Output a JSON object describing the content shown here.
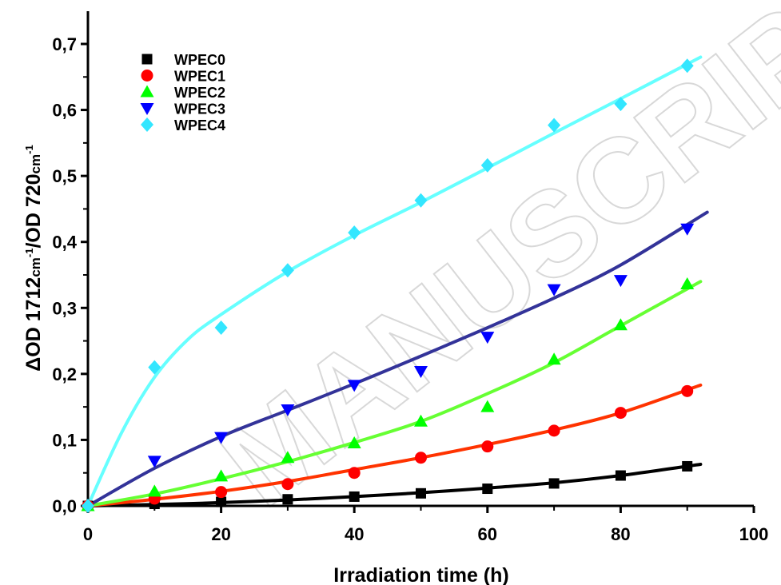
{
  "watermark": "MANUSCRIPT",
  "chart_data": {
    "type": "scatter",
    "title": "",
    "xlabel": "Irradiation time (h)",
    "ylabel_parts": [
      "ΔOD 1712",
      "cm",
      "-1",
      "/OD 720",
      "cm",
      "-1"
    ],
    "xlim": [
      0,
      100
    ],
    "ylim": [
      0,
      0.7
    ],
    "xticks": [
      0,
      20,
      40,
      60,
      80,
      100
    ],
    "xtick_labels": [
      "0",
      "20",
      "40",
      "60",
      "80",
      "100"
    ],
    "yticks": [
      0,
      0.1,
      0.2,
      0.3,
      0.4,
      0.5,
      0.6,
      0.7
    ],
    "ytick_labels": [
      "0,0",
      "0,1",
      "0,2",
      "0,3",
      "0,4",
      "0,5",
      "0,6",
      "0,7"
    ],
    "grid": false,
    "legend_position": "top-left",
    "series": [
      {
        "name": "WPEC0",
        "marker": "square",
        "marker_color": "#000000",
        "line_color": "#000000",
        "x": [
          0,
          10,
          20,
          30,
          40,
          50,
          60,
          70,
          80,
          90
        ],
        "y": [
          0.0,
          0.003,
          0.006,
          0.01,
          0.014,
          0.019,
          0.026,
          0.034,
          0.046,
          0.06
        ],
        "fit_x": [
          0,
          10,
          20,
          30,
          40,
          50,
          60,
          70,
          80,
          92
        ],
        "fit_y": [
          0.0,
          0.002,
          0.005,
          0.009,
          0.014,
          0.02,
          0.027,
          0.035,
          0.046,
          0.063
        ]
      },
      {
        "name": "WPEC1",
        "marker": "circle",
        "marker_color": "#ff0000",
        "line_color": "#ff3300",
        "x": [
          0,
          10,
          20,
          30,
          40,
          50,
          60,
          70,
          80,
          90
        ],
        "y": [
          0.0,
          0.011,
          0.021,
          0.033,
          0.05,
          0.073,
          0.09,
          0.114,
          0.141,
          0.174
        ],
        "fit_x": [
          0,
          10,
          20,
          30,
          40,
          50,
          60,
          70,
          80,
          92
        ],
        "fit_y": [
          0.0,
          0.01,
          0.022,
          0.037,
          0.055,
          0.073,
          0.093,
          0.115,
          0.141,
          0.183
        ]
      },
      {
        "name": "WPEC2",
        "marker": "triangle-up",
        "marker_color": "#00ff00",
        "line_color": "#66ff33",
        "x": [
          0,
          10,
          20,
          30,
          40,
          50,
          60,
          70,
          80,
          90
        ],
        "y": [
          0.0,
          0.022,
          0.045,
          0.073,
          0.095,
          0.128,
          0.15,
          0.222,
          0.274,
          0.336
        ],
        "fit_x": [
          0,
          10,
          20,
          30,
          40,
          50,
          60,
          70,
          80,
          92
        ],
        "fit_y": [
          0.0,
          0.018,
          0.041,
          0.067,
          0.096,
          0.128,
          0.17,
          0.217,
          0.273,
          0.34
        ]
      },
      {
        "name": "WPEC3",
        "marker": "triangle-down",
        "marker_color": "#0000ff",
        "line_color": "#333399",
        "x": [
          10,
          20,
          30,
          40,
          50,
          60,
          70,
          80,
          90
        ],
        "y": [
          0.068,
          0.104,
          0.146,
          0.183,
          0.204,
          0.256,
          0.328,
          0.342,
          0.42
        ],
        "fit_x": [
          0,
          10,
          20,
          30,
          40,
          50,
          60,
          70,
          80,
          93
        ],
        "fit_y": [
          0.0,
          0.057,
          0.105,
          0.145,
          0.185,
          0.227,
          0.27,
          0.315,
          0.365,
          0.445
        ]
      },
      {
        "name": "WPEC4",
        "marker": "diamond",
        "marker_color": "#33e6ff",
        "line_color": "#66ffff",
        "x": [
          0,
          10,
          20,
          30,
          40,
          50,
          60,
          70,
          80,
          90
        ],
        "y": [
          0.0,
          0.21,
          0.27,
          0.357,
          0.414,
          0.463,
          0.516,
          0.577,
          0.609,
          0.667
        ],
        "fit_x": [
          0,
          5,
          10,
          15,
          20,
          30,
          40,
          50,
          60,
          70,
          80,
          92
        ],
        "fit_y": [
          0.0,
          0.11,
          0.195,
          0.252,
          0.29,
          0.355,
          0.41,
          0.46,
          0.512,
          0.565,
          0.617,
          0.68
        ]
      }
    ]
  }
}
